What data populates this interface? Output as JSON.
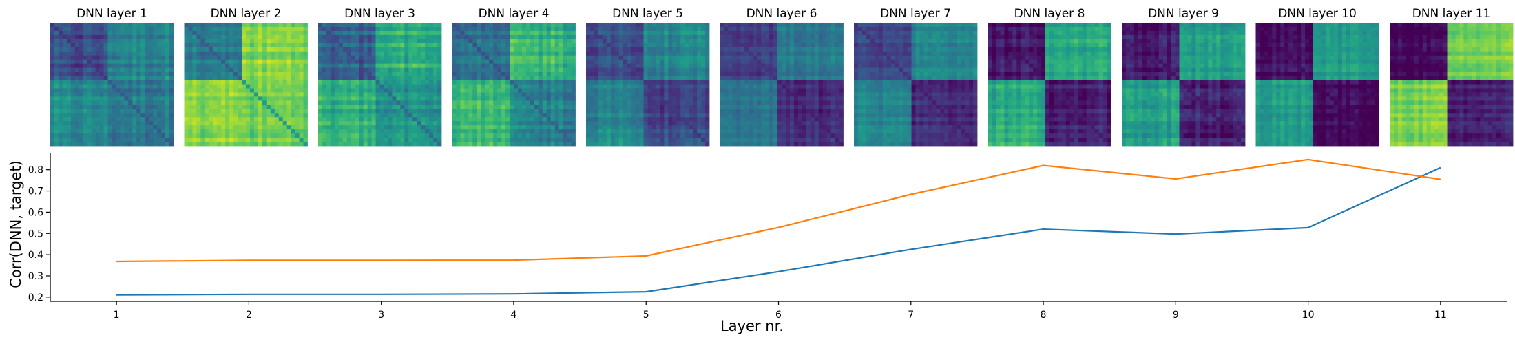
{
  "chart_data": [
    {
      "type": "heatmap",
      "panel_titles": [
        "DNN layer 1",
        "DNN layer 2",
        "DNN layer 3",
        "DNN layer 4",
        "DNN layer 5",
        "DNN layer 6",
        "DNN layer 7",
        "DNN layer 8",
        "DNN layer 9",
        "DNN layer 10",
        "DNN layer 11"
      ],
      "colormap": "viridis",
      "block_structure": [
        {
          "tl": 0.22,
          "tr": 0.45,
          "bl": 0.45,
          "br": 0.4,
          "noise": 0.14
        },
        {
          "tl": 0.42,
          "tr": 0.82,
          "bl": 0.82,
          "br": 0.78,
          "noise": 0.12
        },
        {
          "tl": 0.32,
          "tr": 0.62,
          "bl": 0.62,
          "br": 0.5,
          "noise": 0.14
        },
        {
          "tl": 0.35,
          "tr": 0.66,
          "bl": 0.66,
          "br": 0.45,
          "noise": 0.15
        },
        {
          "tl": 0.24,
          "tr": 0.46,
          "bl": 0.46,
          "br": 0.22,
          "noise": 0.12
        },
        {
          "tl": 0.2,
          "tr": 0.4,
          "bl": 0.4,
          "br": 0.12,
          "noise": 0.1
        },
        {
          "tl": 0.2,
          "tr": 0.45,
          "bl": 0.45,
          "br": 0.12,
          "noise": 0.1
        },
        {
          "tl": 0.06,
          "tr": 0.62,
          "bl": 0.62,
          "br": 0.1,
          "noise": 0.12
        },
        {
          "tl": 0.06,
          "tr": 0.55,
          "bl": 0.55,
          "br": 0.08,
          "noise": 0.12
        },
        {
          "tl": 0.04,
          "tr": 0.55,
          "bl": 0.55,
          "br": 0.02,
          "noise": 0.1
        },
        {
          "tl": 0.02,
          "tr": 0.8,
          "bl": 0.8,
          "br": 0.1,
          "noise": 0.1
        }
      ]
    },
    {
      "type": "line",
      "x": [
        1,
        2,
        3,
        4,
        5,
        6,
        7,
        8,
        9,
        10,
        11
      ],
      "series": [
        {
          "color": "#1f77b4",
          "values": [
            0.21,
            0.213,
            0.213,
            0.215,
            0.225,
            0.32,
            0.425,
            0.52,
            0.497,
            0.527,
            0.81
          ]
        },
        {
          "color": "#ff7f0e",
          "values": [
            0.368,
            0.373,
            0.373,
            0.374,
            0.394,
            0.528,
            0.684,
            0.82,
            0.757,
            0.848,
            0.755
          ]
        }
      ],
      "xlabel": "Layer nr.",
      "ylabel": "Corr(DNN, target)",
      "xlim": [
        0.5,
        11.5
      ],
      "ylim": [
        0.18,
        0.88
      ],
      "xticks": [
        1,
        2,
        3,
        4,
        5,
        6,
        7,
        8,
        9,
        10,
        11
      ],
      "yticks": [
        0.2,
        0.3,
        0.4,
        0.5,
        0.6,
        0.7,
        0.8
      ],
      "grid": false,
      "legend": "none"
    }
  ]
}
